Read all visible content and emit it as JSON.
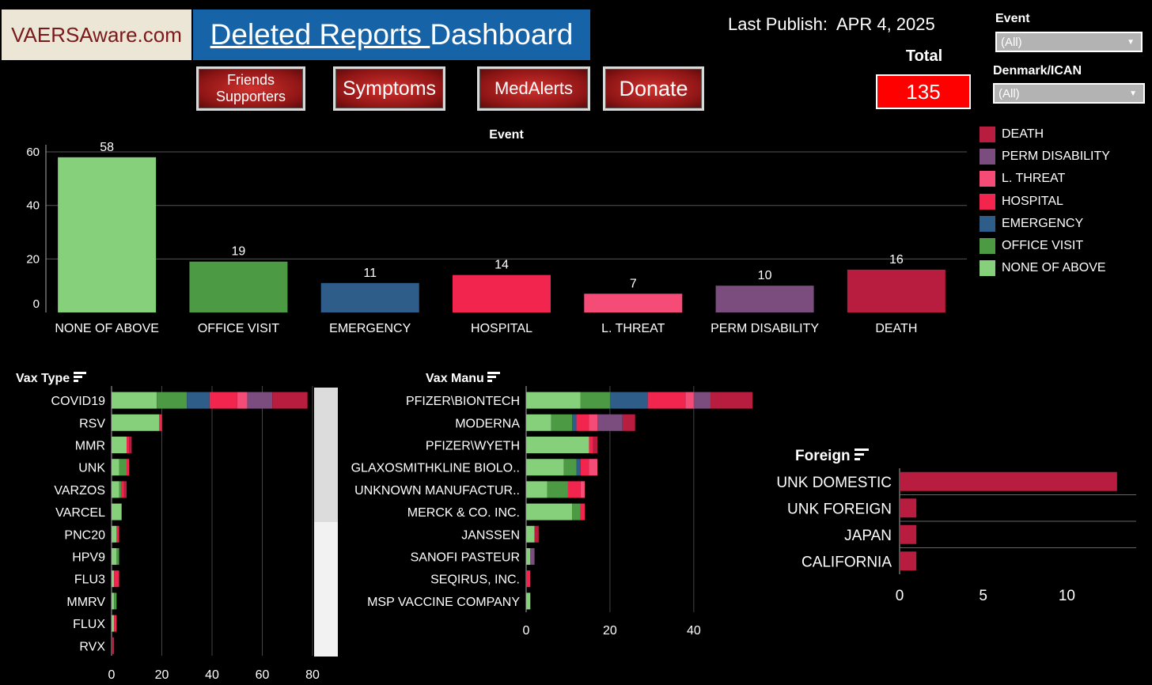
{
  "header": {
    "logo_text": "VAERSAware.com",
    "title_underlined": "Deleted Reports ",
    "title_rest": "Dashboard",
    "last_publish_label": "Last Publish:",
    "last_publish_date": "APR 4, 2025"
  },
  "nav": {
    "friends_line1": "Friends",
    "friends_line2": "Supporters",
    "symptoms": "Symptoms",
    "medalerts": "MedAlerts",
    "donate": "Donate"
  },
  "total": {
    "label": "Total",
    "value": "135"
  },
  "filters": {
    "event_label": "Event",
    "event_value": "(All)",
    "denmark_label": "Denmark/ICAN",
    "denmark_value": "(All)"
  },
  "colors": {
    "DEATH": "#b81c3f",
    "PERM DISABILITY": "#7b4d7e",
    "L. THREAT": "#f44c76",
    "HOSPITAL": "#f2254f",
    "EMERGENCY": "#2f5d8a",
    "OFFICE VISIT": "#4c9a44",
    "NONE OF ABOVE": "#86d07c"
  },
  "legend": [
    "DEATH",
    "PERM DISABILITY",
    "L. THREAT",
    "HOSPITAL",
    "EMERGENCY",
    "OFFICE VISIT",
    "NONE OF ABOVE"
  ],
  "section_titles": {
    "vax_type": "Vax Type",
    "vax_manu": "Vax Manu",
    "foreign": "Foreign"
  },
  "chart_data": [
    {
      "id": "event",
      "type": "bar",
      "title": "Event",
      "categories": [
        "NONE OF ABOVE",
        "OFFICE VISIT",
        "EMERGENCY",
        "HOSPITAL",
        "L. THREAT",
        "PERM DISABILITY",
        "DEATH"
      ],
      "values": [
        58,
        19,
        11,
        14,
        7,
        10,
        16
      ],
      "yticks": [
        0,
        20,
        40,
        60
      ],
      "ylim": [
        0,
        68
      ]
    },
    {
      "id": "vax_type",
      "type": "bar",
      "orientation": "horizontal",
      "stacked": true,
      "categories": [
        "COVID19",
        "RSV",
        "MMR",
        "UNK",
        "VARZOS",
        "VARCEL",
        "PNC20",
        "HPV9",
        "FLU3",
        "MMRV",
        "FLUX",
        "RVX"
      ],
      "series": [
        {
          "name": "NONE OF ABOVE",
          "values": [
            18,
            19,
            6,
            3,
            3,
            4,
            2,
            2,
            1,
            1,
            1,
            0
          ]
        },
        {
          "name": "OFFICE VISIT",
          "values": [
            12,
            0,
            0,
            3,
            1,
            0,
            0,
            1,
            0,
            1,
            0,
            0
          ]
        },
        {
          "name": "EMERGENCY",
          "values": [
            9,
            0,
            0,
            0,
            0,
            0,
            0,
            0,
            0,
            0,
            0,
            0
          ]
        },
        {
          "name": "HOSPITAL",
          "values": [
            11,
            1,
            1,
            1,
            1,
            0,
            1,
            0,
            2,
            0,
            1,
            0
          ]
        },
        {
          "name": "L. THREAT",
          "values": [
            4,
            0,
            0,
            0,
            0,
            0,
            0,
            0,
            0,
            0,
            0,
            0
          ]
        },
        {
          "name": "PERM DISABILITY",
          "values": [
            10,
            0,
            0,
            0,
            0,
            0,
            0,
            0,
            0,
            0,
            0,
            0
          ]
        },
        {
          "name": "DEATH",
          "values": [
            14,
            0,
            1,
            0,
            1,
            0,
            0,
            0,
            0,
            0,
            0,
            1
          ]
        }
      ],
      "xticks": [
        0,
        20,
        40,
        60,
        80
      ],
      "xlim": [
        0,
        80
      ]
    },
    {
      "id": "vax_manu",
      "type": "bar",
      "orientation": "horizontal",
      "stacked": true,
      "categories": [
        "PFIZER\\BIONTECH",
        "MODERNA",
        "PFIZER\\WYETH",
        "GLAXOSMITHKLINE BIOLO..",
        "UNKNOWN MANUFACTUR..",
        "MERCK & CO. INC.",
        "JANSSEN",
        "SANOFI PASTEUR",
        "SEQIRUS, INC.",
        "MSP VACCINE COMPANY"
      ],
      "series": [
        {
          "name": "NONE OF ABOVE",
          "values": [
            13,
            6,
            15,
            9,
            5,
            11,
            2,
            1,
            0,
            1
          ]
        },
        {
          "name": "OFFICE VISIT",
          "values": [
            7,
            5,
            0,
            3,
            5,
            2,
            0,
            0,
            0,
            0
          ]
        },
        {
          "name": "EMERGENCY",
          "values": [
            9,
            1,
            0,
            1,
            0,
            0,
            0,
            0,
            0,
            0
          ]
        },
        {
          "name": "HOSPITAL",
          "values": [
            9,
            3,
            1,
            2,
            3,
            1,
            0,
            0,
            1,
            0
          ]
        },
        {
          "name": "L. THREAT",
          "values": [
            2,
            2,
            0,
            2,
            1,
            0,
            0,
            0,
            0,
            0
          ]
        },
        {
          "name": "PERM DISABILITY",
          "values": [
            4,
            6,
            0,
            0,
            0,
            0,
            0,
            1,
            0,
            0
          ]
        },
        {
          "name": "DEATH",
          "values": [
            10,
            3,
            1,
            0,
            0,
            0,
            1,
            0,
            0,
            0
          ]
        }
      ],
      "xticks": [
        0,
        20,
        40
      ],
      "xlim": [
        0,
        54
      ]
    },
    {
      "id": "foreign",
      "type": "bar",
      "orientation": "horizontal",
      "categories": [
        "UNK DOMESTIC",
        "UNK FOREIGN",
        "JAPAN",
        "CALIFORNIA"
      ],
      "values": [
        13,
        1,
        1,
        1
      ],
      "xticks": [
        0,
        5,
        10
      ],
      "xlim": [
        0,
        14
      ]
    }
  ]
}
